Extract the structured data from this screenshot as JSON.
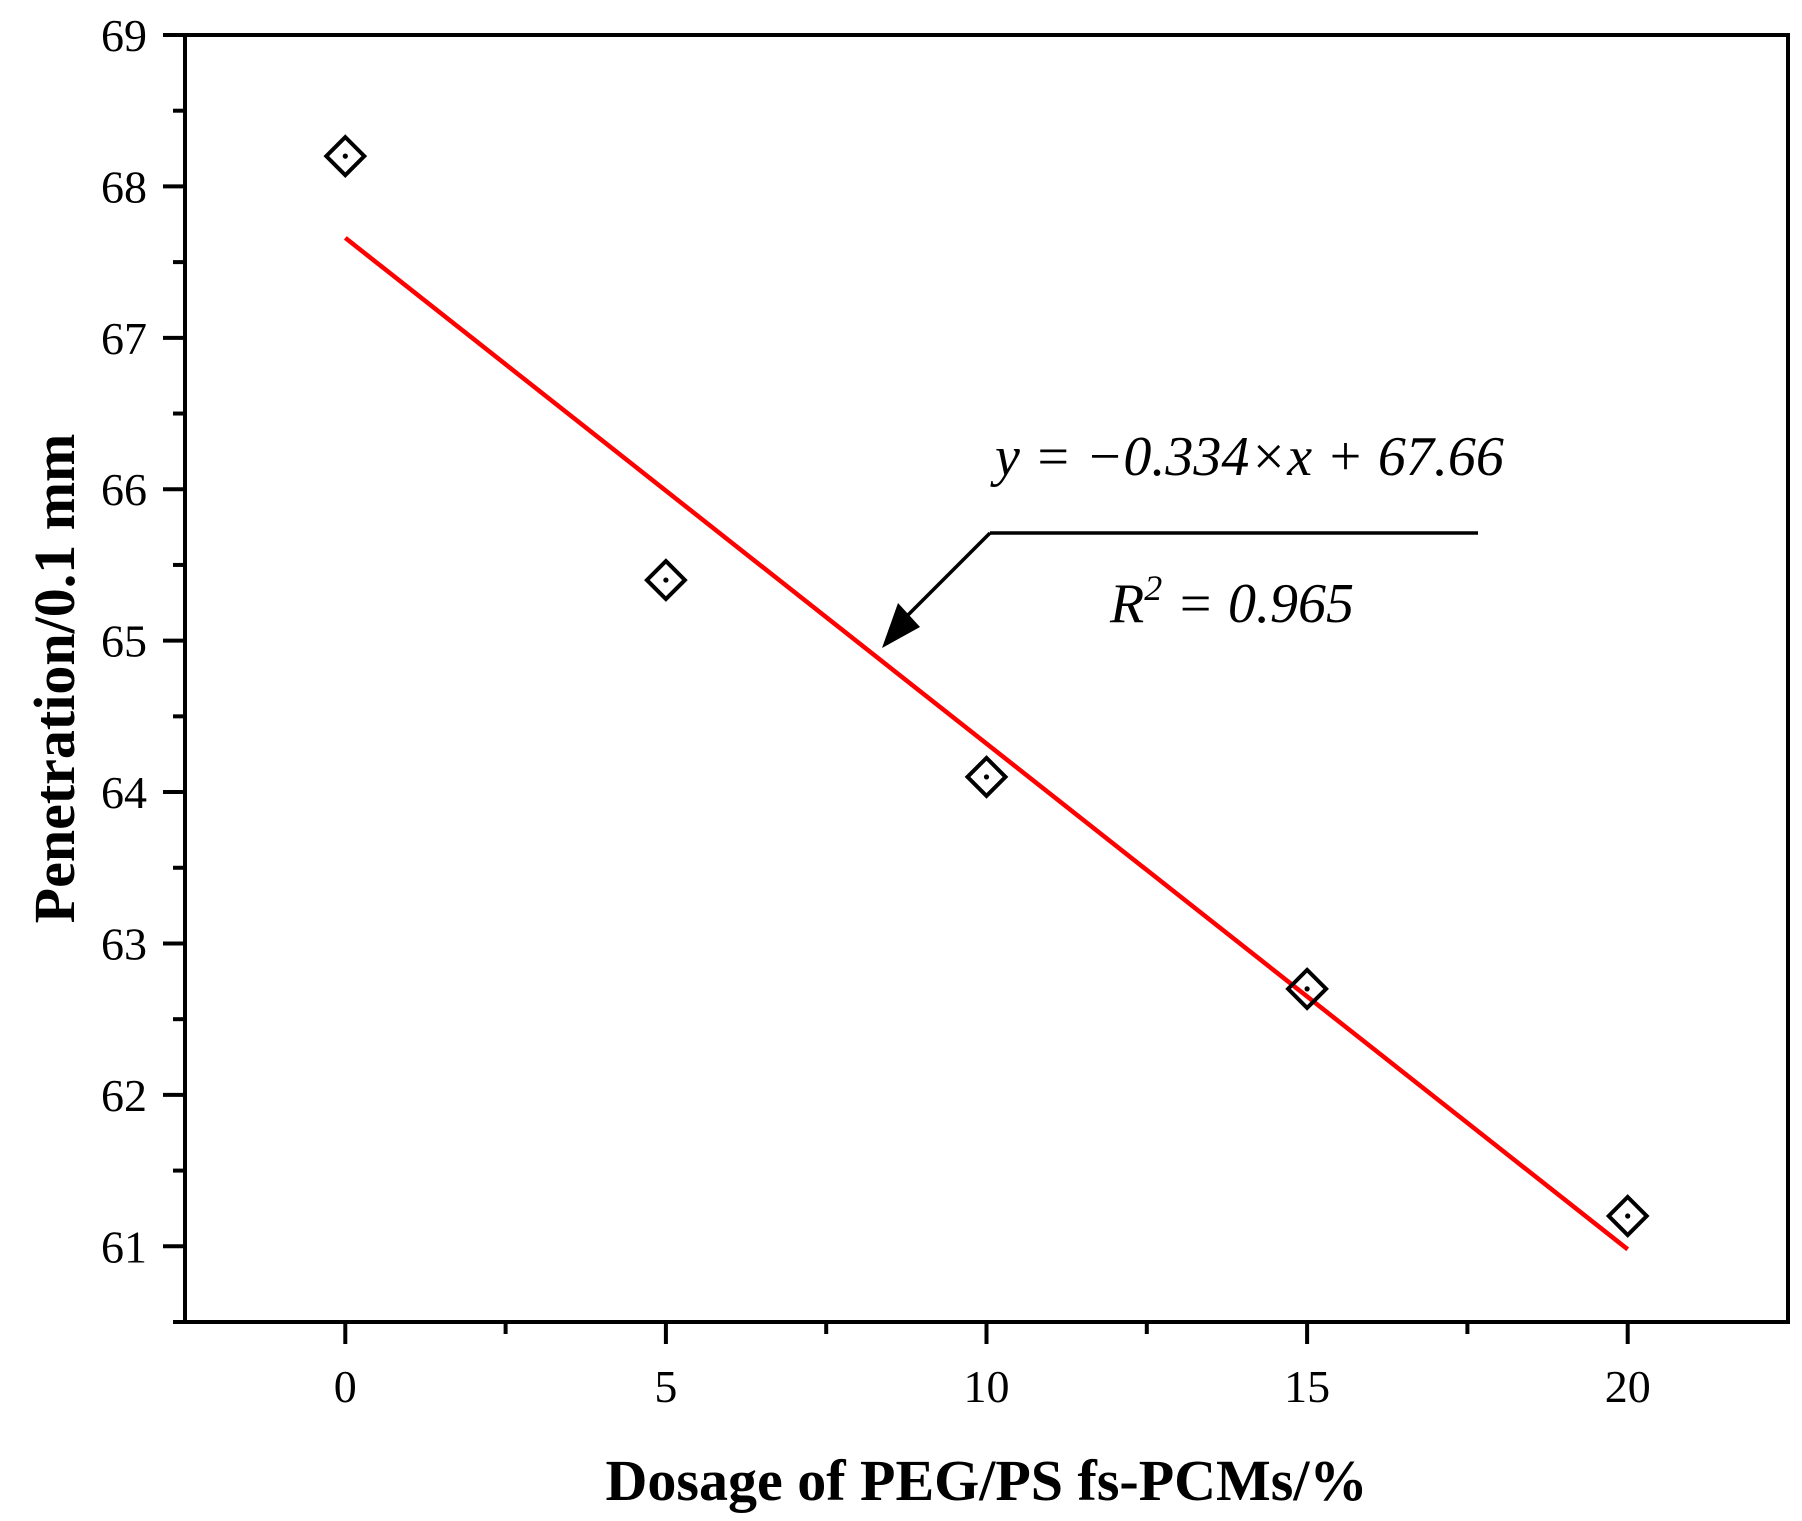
{
  "chart_data": {
    "type": "scatter",
    "xlabel": "Dosage of PEG/PS fs-PCMs/%",
    "ylabel": "Penetration/0.1 mm",
    "xlim": [
      -2.5,
      22.5
    ],
    "ylim": [
      60.5,
      69
    ],
    "x_ticks": [
      0,
      5,
      10,
      15,
      20
    ],
    "y_ticks": [
      61,
      62,
      63,
      64,
      65,
      66,
      67,
      68,
      69
    ],
    "x_minor_step": 2.5,
    "y_minor_step": 0.5,
    "grid": false,
    "marker": "diamond",
    "series": [
      {
        "x": [
          0,
          5,
          10,
          15,
          20
        ],
        "y": [
          68.2,
          65.4,
          64.1,
          62.7,
          61.2
        ],
        "color": "#000000"
      }
    ],
    "fit_line": {
      "slope": -0.334,
      "intercept": 67.66,
      "x_range": [
        0,
        20
      ],
      "color": "#ff0000"
    },
    "annotations": {
      "equation": "y = −0.334×x + 67.66",
      "r2_prefix": "R",
      "r2_sup": "2",
      "r2_suffix": " = 0.965"
    }
  }
}
